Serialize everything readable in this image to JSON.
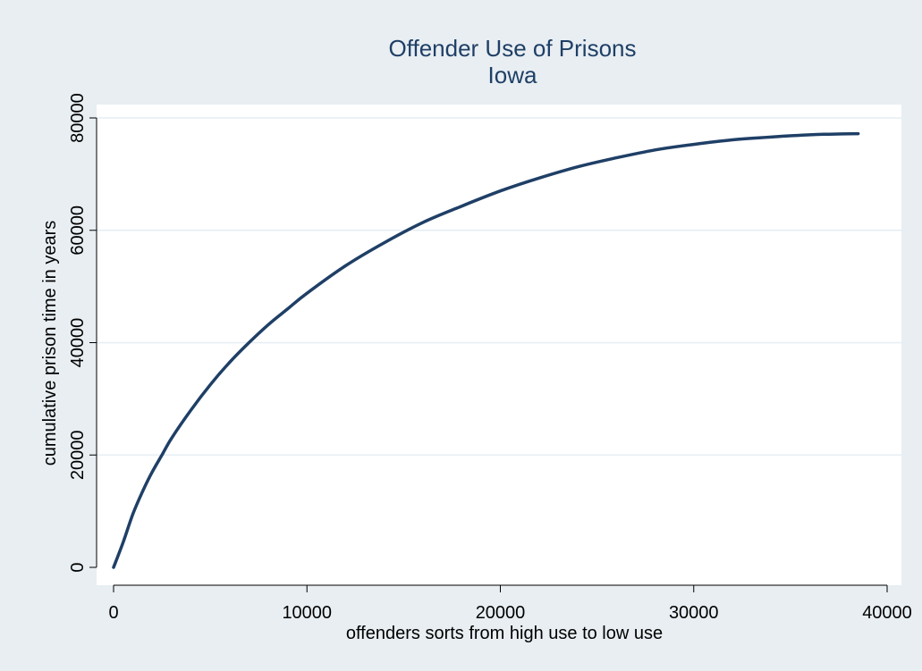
{
  "chart_data": {
    "type": "line",
    "title": "Offender Use of Prisons",
    "subtitle": "Iowa",
    "xlabel": "offenders sorts from high use to low use",
    "ylabel": "cumulative prison time in years",
    "xlim": [
      0,
      40000
    ],
    "ylim": [
      0,
      80000
    ],
    "xticks": [
      0,
      10000,
      20000,
      30000,
      40000
    ],
    "yticks": [
      0,
      20000,
      40000,
      60000,
      80000
    ],
    "grid": "horizontal",
    "legend": "none",
    "series": [
      {
        "color": "#1f3f66",
        "x": [
          0,
          500,
          1000,
          1500,
          2000,
          2500,
          3000,
          4000,
          5000,
          6000,
          7000,
          8000,
          9000,
          10000,
          12000,
          14000,
          16000,
          18000,
          20000,
          22000,
          24000,
          26000,
          28000,
          30000,
          32000,
          34000,
          36000,
          37000,
          38500
        ],
        "y": [
          0,
          4500,
          9500,
          13500,
          17000,
          20000,
          23000,
          28000,
          32500,
          36500,
          40000,
          43200,
          46000,
          48800,
          53700,
          57800,
          61400,
          64300,
          67000,
          69300,
          71300,
          72900,
          74300,
          75300,
          76100,
          76600,
          77000,
          77100,
          77200
        ]
      }
    ],
    "colors": {
      "line": "#1f3f66",
      "plot_bg": "#ffffff",
      "outer_bg": "#e8eef2",
      "grid": "#e6eef3",
      "title": "#1f3f66"
    }
  }
}
